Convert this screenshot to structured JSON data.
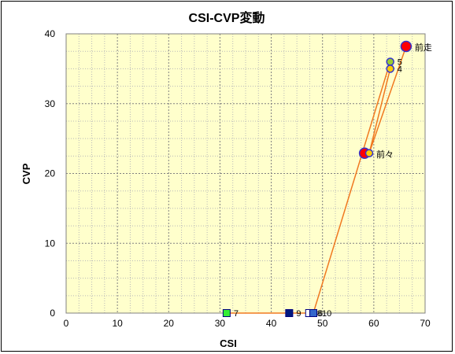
{
  "chart_data": {
    "type": "scatter",
    "title": "CSI-CVP変動",
    "xlabel": "CSI",
    "ylabel": "CVP",
    "xlim": [
      0,
      70
    ],
    "ylim": [
      0,
      40
    ],
    "xticks": [
      0,
      10,
      20,
      30,
      40,
      50,
      60,
      70
    ],
    "yticks": [
      0,
      10,
      20,
      30,
      40
    ],
    "grid": true,
    "line_color": "#f07820",
    "plot_bg": "#ffffcc",
    "path_order": [
      "前走",
      "前々",
      "4",
      "5",
      "6",
      "7",
      "8",
      "9",
      "10"
    ],
    "points": [
      {
        "label": "前走",
        "x": 66.3,
        "y": 38.2,
        "shape": "circle",
        "size": "large",
        "fill": "#ff0000",
        "stroke": "#3333cc"
      },
      {
        "label": "前々",
        "x": 59.1,
        "y": 22.9,
        "shape": "circle",
        "size": "small",
        "fill": "#ffcc00",
        "stroke": "#3333cc"
      },
      {
        "label": "4",
        "x": 63.2,
        "y": 35.0,
        "shape": "circle",
        "size": "small",
        "fill": "#ffcc00",
        "stroke": "#3333cc"
      },
      {
        "label": "5",
        "x": 63.2,
        "y": 36.0,
        "shape": "circle",
        "size": "small",
        "fill": "#99cc33",
        "stroke": "#3333cc"
      },
      {
        "label": "6",
        "x": 48.2,
        "y": 0,
        "shape": "square",
        "size": "small",
        "fill": "#3366cc",
        "stroke": "#000080"
      },
      {
        "label": "7",
        "x": 31.3,
        "y": 0,
        "shape": "square",
        "size": "small",
        "fill": "#33ee33",
        "stroke": "#000080"
      },
      {
        "label": "8",
        "x": 47.4,
        "y": 0,
        "shape": "square",
        "size": "small",
        "fill": "#ffffff",
        "stroke": "#000080"
      },
      {
        "label": "9",
        "x": 43.5,
        "y": 0,
        "shape": "square",
        "size": "small",
        "fill": "#001a80",
        "stroke": "#000080"
      },
      {
        "label": "10",
        "x": 48.2,
        "y": 0,
        "shape": "square",
        "size": "small",
        "fill": "#3366cc",
        "stroke": "#000080"
      }
    ],
    "extra_markers": [
      {
        "x": 58.2,
        "y": 22.9,
        "shape": "circle",
        "size": "large",
        "fill": "#ff0000",
        "stroke": "#3333cc"
      }
    ]
  }
}
